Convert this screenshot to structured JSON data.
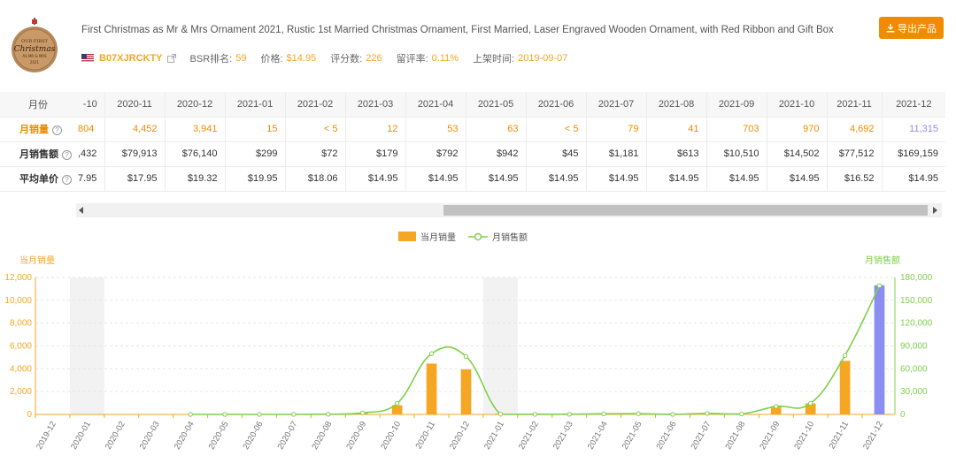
{
  "product": {
    "title": "First Christmas as Mr & Mrs Ornament 2021, Rustic 1st Married Christmas Ornament, First Married, Laser Engraved Wooden Ornament, with Red Ribbon and Gift Box",
    "thumbnail_icon": "wooden-ornament-thumbnail",
    "asin": "B07XJRCKTY",
    "bsr_label": "BSR排名:",
    "bsr_value": "59",
    "price_label": "价格:",
    "price_value": "$14.95",
    "reviews_label": "评分数:",
    "reviews_value": "226",
    "rate_label": "留评率:",
    "rate_value": "0.11%",
    "launch_label": "上架时间:",
    "launch_value": "2019-09-07",
    "export_label": "导出产品"
  },
  "table": {
    "header_label": "月份",
    "months": [
      "-10",
      "2020-11",
      "2020-12",
      "2021-01",
      "2021-02",
      "2021-03",
      "2021-04",
      "2021-05",
      "2021-06",
      "2021-07",
      "2021-08",
      "2021-09",
      "2021-10",
      "2021-11",
      "2021-12"
    ],
    "rows": [
      {
        "label": "月销量",
        "values": [
          "804",
          "4,452",
          "3,941",
          "15",
          "< 5",
          "12",
          "53",
          "63",
          "< 5",
          "79",
          "41",
          "703",
          "970",
          "4,692",
          "11,315"
        ]
      },
      {
        "label": "月销售额",
        "values": [
          ",432",
          "$79,913",
          "$76,140",
          "$299",
          "$72",
          "$179",
          "$792",
          "$942",
          "$45",
          "$1,181",
          "$613",
          "$10,510",
          "$14,502",
          "$77,512",
          "$169,159"
        ]
      },
      {
        "label": "平均单价",
        "values": [
          "7.95",
          "$17.95",
          "$19.32",
          "$19.95",
          "$18.06",
          "$14.95",
          "$14.95",
          "$14.95",
          "$14.95",
          "$14.95",
          "$14.95",
          "$14.95",
          "$14.95",
          "$16.52",
          "$14.95"
        ]
      }
    ],
    "help_glyph": "?"
  },
  "colors": {
    "bar": "#f5a623",
    "bar_highlight": "#8a8ef0",
    "line": "#7ed04b",
    "accent": "#f08c00"
  },
  "chart_data": {
    "type": "bar",
    "legend": [
      "当月销量",
      "月销售额"
    ],
    "left_axis_title": "当月销量",
    "right_axis_title": "月销售额",
    "left_ticks": [
      "0",
      "2,000",
      "4,000",
      "6,000",
      "8,000",
      "10,000",
      "12,000"
    ],
    "right_ticks": [
      "0",
      "30,000",
      "60,000",
      "90,000",
      "120,000",
      "150,000",
      "180,000"
    ],
    "ylim_left": [
      0,
      12000
    ],
    "ylim_right": [
      0,
      180000
    ],
    "categories": [
      "2019-12",
      "2020-01",
      "2020-02",
      "2020-03",
      "2020-04",
      "2020-05",
      "2020-06",
      "2020-07",
      "2020-08",
      "2020-09",
      "2020-10",
      "2020-11",
      "2020-12",
      "2021-01",
      "2021-02",
      "2021-03",
      "2021-04",
      "2021-05",
      "2021-06",
      "2021-07",
      "2021-08",
      "2021-09",
      "2021-10",
      "2021-11",
      "2021-12"
    ],
    "series": [
      {
        "name": "当月销量",
        "type": "bar",
        "values": [
          null,
          null,
          null,
          null,
          0,
          0,
          0,
          0,
          0,
          150,
          804,
          4452,
          3941,
          15,
          3,
          12,
          53,
          63,
          3,
          79,
          41,
          703,
          970,
          4692,
          11315
        ]
      },
      {
        "name": "月销售额",
        "type": "line",
        "values": [
          null,
          null,
          null,
          null,
          0,
          0,
          0,
          0,
          200,
          2000,
          14432,
          79913,
          76140,
          299,
          72,
          179,
          792,
          942,
          45,
          1181,
          613,
          10510,
          14502,
          77512,
          169159
        ]
      }
    ],
    "shaded_categories": [
      "2020-01",
      "2021-01"
    ],
    "grid": true
  }
}
